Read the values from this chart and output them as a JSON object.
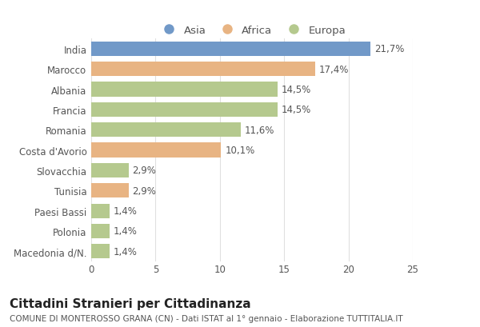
{
  "categories": [
    "India",
    "Marocco",
    "Albania",
    "Francia",
    "Romania",
    "Costa d'Avorio",
    "Slovacchia",
    "Tunisia",
    "Paesi Bassi",
    "Polonia",
    "Macedonia d/N."
  ],
  "values": [
    21.7,
    17.4,
    14.5,
    14.5,
    11.6,
    10.1,
    2.9,
    2.9,
    1.4,
    1.4,
    1.4
  ],
  "labels": [
    "21,7%",
    "17,4%",
    "14,5%",
    "14,5%",
    "11,6%",
    "10,1%",
    "2,9%",
    "2,9%",
    "1,4%",
    "1,4%",
    "1,4%"
  ],
  "colors": [
    "#7199c8",
    "#e8b483",
    "#b5c98e",
    "#b5c98e",
    "#b5c98e",
    "#e8b483",
    "#b5c98e",
    "#e8b483",
    "#b5c98e",
    "#b5c98e",
    "#b5c98e"
  ],
  "legend_labels": [
    "Asia",
    "Africa",
    "Europa"
  ],
  "legend_colors": [
    "#7199c8",
    "#e8b483",
    "#b5c98e"
  ],
  "title": "Cittadini Stranieri per Cittadinanza",
  "subtitle": "COMUNE DI MONTEROSSO GRANA (CN) - Dati ISTAT al 1° gennaio - Elaborazione TUTTITALIA.IT",
  "xlim": [
    0,
    25
  ],
  "xticks": [
    0,
    5,
    10,
    15,
    20,
    25
  ],
  "bg_color": "#ffffff",
  "plot_bg_color": "#ffffff",
  "grid_color": "#e0e0e0",
  "bar_height": 0.72,
  "title_fontsize": 11,
  "subtitle_fontsize": 7.5,
  "label_fontsize": 8.5,
  "tick_fontsize": 8.5,
  "legend_fontsize": 9.5
}
